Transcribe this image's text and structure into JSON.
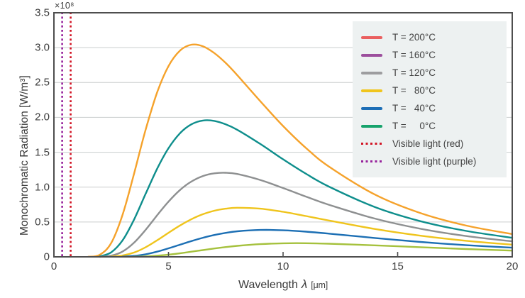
{
  "figure": {
    "background": "#ffffff",
    "axis_color": "#4e4e4e",
    "grid_color": "#cacece",
    "text_color": "#3b3b3b",
    "legend_bg": "#edf1f1",
    "y_axis": {
      "title": "Monochromatic Radiation [W/m³]",
      "multiplier": "×10⁸",
      "tick_labels": [
        "0",
        "0.5",
        "1.0",
        "1.5",
        "2.0",
        "2.5",
        "3.0",
        "3.5"
      ],
      "tick_values": [
        0,
        0.5,
        1.0,
        1.5,
        2.0,
        2.5,
        3.0,
        3.5
      ]
    },
    "x_axis": {
      "title_pre": "Wavelength",
      "title_symbol": "λ",
      "title_unit": "[μm]",
      "tick_labels": [
        "0",
        "5",
        "10",
        "15",
        "20"
      ],
      "tick_values": [
        0,
        5,
        10,
        15,
        20
      ]
    }
  },
  "chart_data": {
    "type": "line",
    "title": "",
    "xlabel": "Wavelength λ [μm]",
    "ylabel": "Monochromatic Radiation [W/m³]",
    "x_unit": "μm",
    "y_unit": "W/m³",
    "y_multiplier": 100000000.0,
    "xlim": [
      0,
      20
    ],
    "ylim": [
      0,
      3.5
    ],
    "grid": "horizontal",
    "legend_position": "upper right",
    "series": [
      {
        "name": "T = 200°C",
        "temperature_c": 200,
        "curve_color": "#f5a22b",
        "legend_color": "#ea5f5f",
        "style": "solid",
        "points": [
          [
            1.5,
            0.002
          ],
          [
            2,
            0.029
          ],
          [
            2.5,
            0.199
          ],
          [
            3,
            0.608
          ],
          [
            3.5,
            1.198
          ],
          [
            4,
            1.82
          ],
          [
            4.5,
            2.353
          ],
          [
            5,
            2.735
          ],
          [
            5.5,
            2.957
          ],
          [
            6,
            3.042
          ],
          [
            6.5,
            3.02
          ],
          [
            7,
            2.922
          ],
          [
            7.5,
            2.779
          ],
          [
            8,
            2.606
          ],
          [
            9,
            2.234
          ],
          [
            10,
            1.876
          ],
          [
            11,
            1.561
          ],
          [
            12,
            1.295
          ],
          [
            14,
            0.894
          ],
          [
            16,
            0.627
          ],
          [
            18,
            0.448
          ],
          [
            20,
            0.327
          ]
        ]
      },
      {
        "name": "T = 160°C",
        "temperature_c": 160,
        "curve_color": "#0e8e8c",
        "legend_color": "#9c4f9d",
        "style": "solid",
        "points": [
          [
            2,
            0.007
          ],
          [
            2.5,
            0.065
          ],
          [
            3,
            0.238
          ],
          [
            3.5,
            0.537
          ],
          [
            4,
            0.902
          ],
          [
            4.5,
            1.26
          ],
          [
            5,
            1.558
          ],
          [
            5.5,
            1.772
          ],
          [
            6,
            1.901
          ],
          [
            6.5,
            1.955
          ],
          [
            7,
            1.949
          ],
          [
            7.5,
            1.9
          ],
          [
            8,
            1.822
          ],
          [
            9,
            1.62
          ],
          [
            10,
            1.399
          ],
          [
            11,
            1.191
          ],
          [
            12,
            1.007
          ],
          [
            14,
            0.715
          ],
          [
            16,
            0.511
          ],
          [
            18,
            0.371
          ],
          [
            20,
            0.274
          ]
        ]
      },
      {
        "name": "T = 120°C",
        "temperature_c": 120,
        "curve_color": "#8e9091",
        "legend_color": "#9d9d9f",
        "style": "solid",
        "points": [
          [
            2,
            0.001
          ],
          [
            2.5,
            0.017
          ],
          [
            3,
            0.077
          ],
          [
            3.5,
            0.204
          ],
          [
            4,
            0.387
          ],
          [
            4.5,
            0.594
          ],
          [
            5,
            0.792
          ],
          [
            5.5,
            0.958
          ],
          [
            6,
            1.08
          ],
          [
            6.5,
            1.159
          ],
          [
            7,
            1.198
          ],
          [
            7.5,
            1.206
          ],
          [
            8,
            1.188
          ],
          [
            9,
            1.103
          ],
          [
            10,
            0.987
          ],
          [
            11,
            0.864
          ],
          [
            12,
            0.747
          ],
          [
            14,
            0.549
          ],
          [
            16,
            0.403
          ],
          [
            18,
            0.298
          ],
          [
            20,
            0.223
          ]
        ]
      },
      {
        "name": "T =   80°C",
        "temperature_c": 80,
        "curve_color": "#efc41c",
        "legend_color": "#f0c51d",
        "style": "solid",
        "points": [
          [
            2.5,
            0.004
          ],
          [
            3,
            0.02
          ],
          [
            3.5,
            0.062
          ],
          [
            4,
            0.137
          ],
          [
            4.5,
            0.236
          ],
          [
            5,
            0.345
          ],
          [
            5.5,
            0.45
          ],
          [
            6,
            0.54
          ],
          [
            6.5,
            0.611
          ],
          [
            7,
            0.661
          ],
          [
            7.5,
            0.691
          ],
          [
            8,
            0.704
          ],
          [
            9,
            0.691
          ],
          [
            10,
            0.646
          ],
          [
            11,
            0.585
          ],
          [
            12,
            0.521
          ],
          [
            14,
            0.4
          ],
          [
            16,
            0.303
          ],
          [
            18,
            0.23
          ],
          [
            20,
            0.175
          ]
        ]
      },
      {
        "name": "T =   40°C",
        "temperature_c": 40,
        "curve_color": "#1c6fb4",
        "legend_color": "#1d6eb6",
        "style": "solid",
        "points": [
          [
            3,
            0.003
          ],
          [
            3.5,
            0.014
          ],
          [
            4,
            0.037
          ],
          [
            4.5,
            0.074
          ],
          [
            5,
            0.122
          ],
          [
            5.5,
            0.174
          ],
          [
            6,
            0.226
          ],
          [
            6.5,
            0.274
          ],
          [
            7,
            0.313
          ],
          [
            7.5,
            0.344
          ],
          [
            8,
            0.366
          ],
          [
            9,
            0.386
          ],
          [
            10,
            0.381
          ],
          [
            11,
            0.361
          ],
          [
            12,
            0.333
          ],
          [
            14,
            0.271
          ],
          [
            16,
            0.214
          ],
          [
            18,
            0.167
          ],
          [
            20,
            0.131
          ]
        ]
      },
      {
        "name": "T =     0°C",
        "temperature_c": 0,
        "curve_color": "#a5c13d",
        "legend_color": "#16a36c",
        "style": "solid",
        "points": [
          [
            3.5,
            0.002
          ],
          [
            4,
            0.007
          ],
          [
            4.5,
            0.017
          ],
          [
            5,
            0.032
          ],
          [
            5.5,
            0.051
          ],
          [
            6,
            0.074
          ],
          [
            6.5,
            0.097
          ],
          [
            7,
            0.12
          ],
          [
            7.5,
            0.14
          ],
          [
            8,
            0.158
          ],
          [
            9,
            0.182
          ],
          [
            10,
            0.194
          ],
          [
            11,
            0.195
          ],
          [
            12,
            0.188
          ],
          [
            14,
            0.165
          ],
          [
            16,
            0.138
          ],
          [
            18,
            0.112
          ],
          [
            20,
            0.09
          ]
        ]
      },
      {
        "name": "Visible light (red)",
        "type": "vline",
        "x": 0.73,
        "curve_color": "#d21525",
        "legend_color": "#d21525",
        "style": "dotted"
      },
      {
        "name": "Visible light (purple)",
        "type": "vline",
        "x": 0.36,
        "curve_color": "#97239c",
        "legend_color": "#97239c",
        "style": "dotted"
      }
    ]
  }
}
